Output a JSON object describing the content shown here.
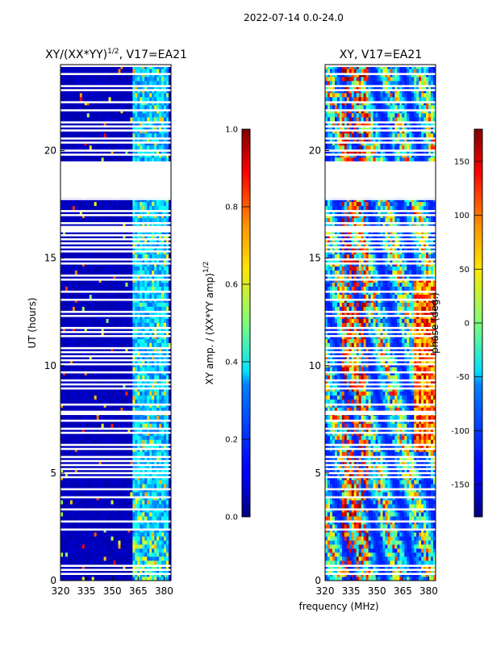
{
  "figure": {
    "suptitle": "2022-07-14 0.0-24.0",
    "xlabel_shared": "frequency (MHz)"
  },
  "chart_data": [
    {
      "type": "heatmap",
      "title": "XY/(XX*YY)",
      "title_sup": "1/2",
      "title_suffix": ", V17=EA21",
      "ylabel": "UT (hours)",
      "xlim": [
        320,
        384
      ],
      "ylim": [
        0,
        24
      ],
      "xticks": [
        320,
        335,
        350,
        365,
        380
      ],
      "yticks": [
        0,
        5,
        10,
        15,
        20
      ],
      "colorbar": {
        "label": "XY amp. / (XX*YY amp)",
        "label_sup": "1/2",
        "range": [
          0.0,
          1.0
        ],
        "ticks": [
          "0.0",
          "0.2",
          "0.4",
          "0.6",
          "0.8",
          "1.0"
        ]
      },
      "colormap": "jet",
      "flagged_hours": [
        [
          19.5,
          17.8
        ],
        [
          16.5,
          16.2
        ],
        [
          7.9,
          7.7
        ]
      ],
      "bright_freq_range_mhz": [
        362,
        382
      ]
    },
    {
      "type": "heatmap",
      "title": "XY, V17=EA21",
      "ylabel": "",
      "xlim": [
        320,
        384
      ],
      "ylim": [
        0,
        24
      ],
      "xticks": [
        320,
        335,
        350,
        365,
        380
      ],
      "yticks": [
        0,
        5,
        10,
        15,
        20
      ],
      "colorbar": {
        "label": "phase (deg.)",
        "range": [
          -180,
          180
        ],
        "ticks": [
          "-150",
          "-100",
          "-50",
          "0",
          "50",
          "100",
          "150"
        ]
      },
      "colormap": "jet",
      "flagged_hours": [
        [
          19.5,
          17.8
        ],
        [
          16.5,
          16.2
        ],
        [
          7.9,
          7.7
        ]
      ],
      "bright_freq_range_mhz": [
        362,
        382
      ]
    }
  ],
  "colors": {
    "axis": "#000000",
    "background": "#ffffff"
  }
}
